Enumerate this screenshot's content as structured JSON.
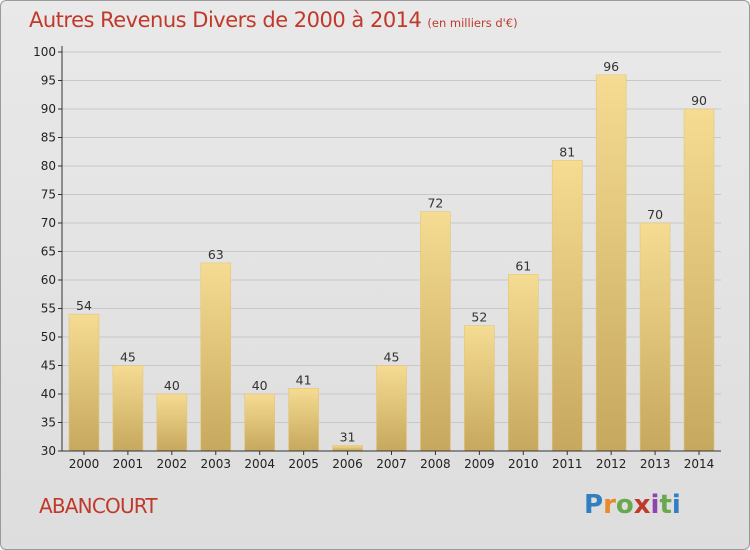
{
  "header": {
    "title": "Autres Revenus Divers de 2000 à 2014",
    "subtitle": "(en milliers d'€)"
  },
  "footer": {
    "commune": "ABANCOURT",
    "logo_text": "Proxiti"
  },
  "colors": {
    "title": "#c0392b",
    "bar_top": "#f5dc92",
    "bar_bottom": "#c6a85e",
    "axis": "#333333",
    "grid": "#c8c8c8"
  },
  "chart_data": {
    "type": "bar",
    "title": "Autres Revenus Divers de 2000 à 2014",
    "subtitle": "(en milliers d'€)",
    "xlabel": "",
    "ylabel": "",
    "categories": [
      "2000",
      "2001",
      "2002",
      "2003",
      "2004",
      "2005",
      "2006",
      "2007",
      "2008",
      "2009",
      "2010",
      "2011",
      "2012",
      "2013",
      "2014"
    ],
    "values": [
      54,
      45,
      40,
      63,
      40,
      41,
      31,
      45,
      72,
      52,
      61,
      81,
      96,
      70,
      90
    ],
    "ylim": [
      30,
      100
    ],
    "yticks": [
      30,
      35,
      40,
      45,
      50,
      55,
      60,
      65,
      70,
      75,
      80,
      85,
      90,
      95,
      100
    ],
    "grid": true,
    "data_labels": true
  }
}
